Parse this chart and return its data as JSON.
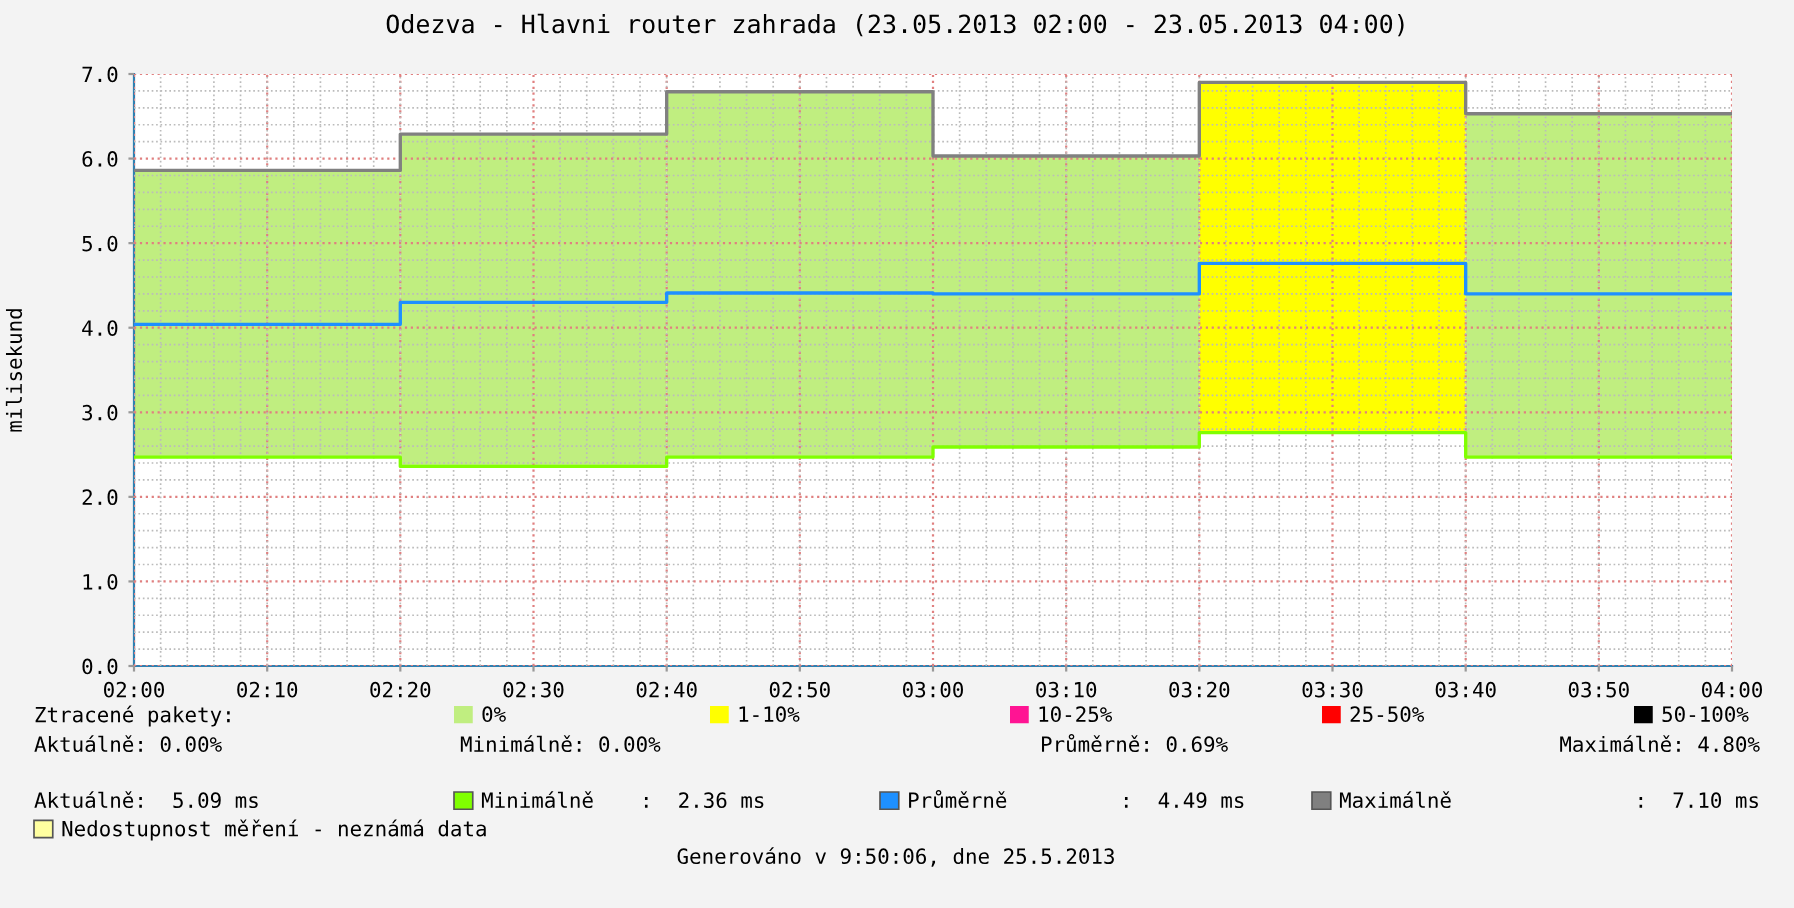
{
  "chart_data": {
    "type": "step",
    "title": "Odezva - Hlavni router zahrada (23.05.2013 02:00 - 23.05.2013 04:00)",
    "ylabel": "milisekund",
    "legend_title": "Ztracené pakety:",
    "x": [
      2,
      2.3333,
      2.6667,
      3,
      3.3333,
      3.6667,
      4
    ],
    "series": [
      {
        "name": "0%",
        "type": "bar",
        "color": "#c0ee80",
        "base": [
          2.47,
          2.36,
          2.47,
          2.59,
          null,
          2.47,
          null
        ],
        "values": [
          3.39,
          3.93,
          4.31,
          3.43,
          null,
          4.05,
          null
        ]
      },
      {
        "name": "1-10%",
        "type": "bar",
        "color": "#ffff00",
        "base": [
          null,
          null,
          null,
          null,
          2.76,
          null,
          null
        ],
        "values": [
          null,
          null,
          null,
          null,
          4.13,
          null,
          null
        ]
      },
      {
        "name": "10-25%",
        "type": "bar",
        "color": "#ff1493",
        "values": [
          null,
          null,
          null,
          null,
          null,
          null,
          null
        ]
      },
      {
        "name": "25-50%",
        "type": "bar",
        "color": "#ff0000",
        "values": [
          null,
          null,
          null,
          null,
          null,
          null,
          null
        ]
      },
      {
        "name": "50-100%",
        "type": "bar",
        "color": "#000000",
        "values": [
          null,
          null,
          null,
          null,
          null,
          null,
          null
        ]
      },
      {
        "name": "Minimálně",
        "color": "#80ff00",
        "values": [
          2.47,
          2.36,
          2.47,
          2.59,
          2.76,
          2.47,
          2.47
        ]
      },
      {
        "name": "Průměrně",
        "color": "#1e90ff",
        "values": [
          4.04,
          4.3,
          4.41,
          4.4,
          4.76,
          4.4,
          4.4
        ]
      },
      {
        "name": "Maximálně",
        "color": "#808080",
        "values": [
          5.86,
          6.29,
          6.79,
          6.03,
          6.9,
          6.53,
          6.53
        ]
      },
      {
        "name": "Nedostupnost měření - neznámá data",
        "type": "bar",
        "color": "#ffffa0",
        "values": [
          null,
          null,
          null,
          null,
          null,
          null,
          null
        ]
      }
    ],
    "xlim": [
      2,
      4
    ],
    "xticks": [
      {
        "value": 2,
        "label": "02:00"
      },
      {
        "value": 2.1667,
        "label": "02:10"
      },
      {
        "value": 2.3333,
        "label": "02:20"
      },
      {
        "value": 2.5,
        "label": "02:30"
      },
      {
        "value": 2.6667,
        "label": "02:40"
      },
      {
        "value": 2.8333,
        "label": "02:50"
      },
      {
        "value": 3,
        "label": "03:00"
      },
      {
        "value": 3.1667,
        "label": "03:10"
      },
      {
        "value": 3.3333,
        "label": "03:20"
      },
      {
        "value": 3.5,
        "label": "03:30"
      },
      {
        "value": 3.6667,
        "label": "03:40"
      },
      {
        "value": 3.8333,
        "label": "03:50"
      },
      {
        "value": 4,
        "label": "04:00"
      }
    ],
    "ylim": [
      0,
      7.0
    ],
    "yticks": [
      {
        "value": 0,
        "label": "0.0"
      },
      {
        "value": 1,
        "label": "1.0"
      },
      {
        "value": 2,
        "label": "2.0"
      },
      {
        "value": 3,
        "label": "3.0"
      },
      {
        "value": 4,
        "label": "4.0"
      },
      {
        "value": 5,
        "label": "5.0"
      },
      {
        "value": 6,
        "label": "6.0"
      },
      {
        "value": 7,
        "label": "7.0"
      }
    ],
    "grid": true,
    "legend": "bottom",
    "annotations": [
      "Aktuálně: 0.00%",
      "Minimálně: 0.00%",
      "Průměrně: 0.69%",
      "Maximálně: 4.80%",
      "Aktuálně:  5.09 ms",
      ":  2.36 ms",
      ":  4.49 ms",
      ":  7.10 ms",
      "Generováno v 9:50:06, dne 25.5.2013"
    ]
  }
}
